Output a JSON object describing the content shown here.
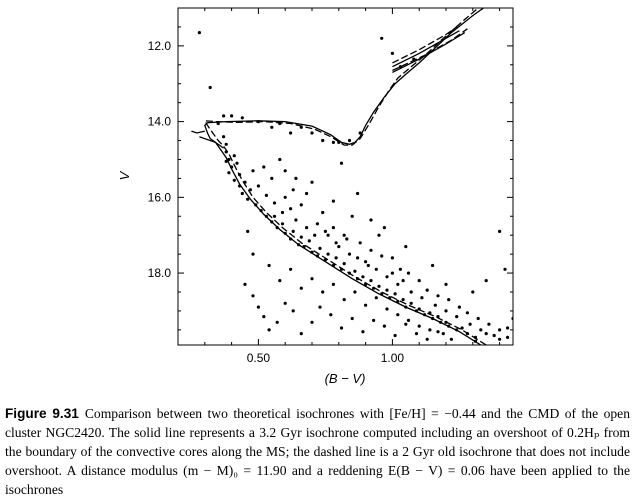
{
  "chart_data": {
    "type": "scatter",
    "title": "",
    "xlabel": "(B − V)",
    "ylabel": "V",
    "xlim": [
      0.2,
      1.45
    ],
    "ylim": [
      19.9,
      11.0
    ],
    "y_inverted": true,
    "grid": false,
    "x_ticks": [
      {
        "value": 0.5,
        "label": "0.50"
      },
      {
        "value": 1.0,
        "label": "1.00"
      }
    ],
    "y_ticks": [
      {
        "value": 12.0,
        "label": "12.0"
      },
      {
        "value": 14.0,
        "label": "14.0"
      },
      {
        "value": 16.0,
        "label": "16.0"
      },
      {
        "value": 18.0,
        "label": "18.0"
      }
    ],
    "series": [
      {
        "kind": "line",
        "style": "solid",
        "points": [
          [
            1.33,
            19.9
          ],
          [
            1.25,
            19.55
          ],
          [
            1.15,
            19.2
          ],
          [
            1.05,
            18.9
          ],
          [
            0.95,
            18.55
          ],
          [
            0.85,
            18.15
          ],
          [
            0.75,
            17.7
          ],
          [
            0.65,
            17.25
          ],
          [
            0.58,
            16.85
          ],
          [
            0.52,
            16.45
          ],
          [
            0.47,
            16.05
          ],
          [
            0.43,
            15.65
          ],
          [
            0.4,
            15.25
          ],
          [
            0.38,
            14.95
          ],
          [
            0.36,
            14.75
          ],
          [
            0.34,
            14.55
          ],
          [
            0.32,
            14.45
          ],
          [
            0.31,
            14.3
          ],
          [
            0.3,
            14.1
          ],
          [
            0.31,
            14.03
          ],
          [
            0.38,
            14.0
          ],
          [
            0.5,
            13.98
          ],
          [
            0.6,
            14.0
          ],
          [
            0.7,
            14.12
          ],
          [
            0.77,
            14.35
          ],
          [
            0.81,
            14.55
          ],
          [
            0.84,
            14.6
          ],
          [
            0.86,
            14.55
          ],
          [
            0.88,
            14.4
          ],
          [
            0.9,
            14.1
          ],
          [
            0.93,
            13.75
          ],
          [
            0.97,
            13.35
          ],
          [
            1.01,
            13.0
          ],
          [
            1.05,
            12.75
          ],
          [
            1.1,
            12.45
          ],
          [
            1.16,
            12.05
          ],
          [
            1.22,
            11.65
          ],
          [
            1.3,
            11.2
          ],
          [
            1.34,
            11.0
          ]
        ]
      },
      {
        "kind": "line",
        "style": "dashed",
        "points": [
          [
            1.35,
            19.9
          ],
          [
            1.26,
            19.5
          ],
          [
            1.16,
            19.15
          ],
          [
            1.06,
            18.85
          ],
          [
            0.96,
            18.5
          ],
          [
            0.86,
            18.1
          ],
          [
            0.76,
            17.65
          ],
          [
            0.66,
            17.2
          ],
          [
            0.59,
            16.8
          ],
          [
            0.53,
            16.4
          ],
          [
            0.48,
            16.0
          ],
          [
            0.44,
            15.55
          ],
          [
            0.41,
            15.15
          ],
          [
            0.39,
            14.85
          ],
          [
            0.37,
            14.65
          ],
          [
            0.35,
            14.5
          ],
          [
            0.33,
            14.3
          ],
          [
            0.31,
            14.1
          ],
          [
            0.3,
            13.98
          ],
          [
            0.34,
            14.0
          ],
          [
            0.42,
            14.02
          ],
          [
            0.52,
            14.0
          ],
          [
            0.62,
            14.05
          ],
          [
            0.71,
            14.2
          ],
          [
            0.77,
            14.4
          ],
          [
            0.82,
            14.62
          ],
          [
            0.85,
            14.62
          ],
          [
            0.88,
            14.45
          ],
          [
            0.91,
            14.1
          ],
          [
            0.95,
            13.6
          ],
          [
            0.99,
            13.15
          ],
          [
            1.02,
            12.85
          ],
          [
            1.07,
            12.55
          ],
          [
            1.13,
            12.2
          ],
          [
            1.19,
            11.8
          ],
          [
            1.27,
            11.3
          ],
          [
            1.32,
            11.0
          ]
        ]
      },
      {
        "kind": "line",
        "style": "solid",
        "points": [
          [
            0.3,
            14.25
          ],
          [
            0.27,
            14.3
          ],
          [
            0.25,
            14.25
          ]
        ]
      },
      {
        "kind": "line",
        "style": "solid",
        "points": [
          [
            0.28,
            14.4
          ],
          [
            0.34,
            14.55
          ],
          [
            0.37,
            14.7
          ]
        ]
      },
      {
        "kind": "line",
        "style": "solid",
        "points": [
          [
            1.0,
            12.55
          ],
          [
            1.1,
            12.2
          ],
          [
            1.2,
            11.8
          ],
          [
            1.25,
            11.6
          ]
        ]
      },
      {
        "kind": "line",
        "style": "dashed",
        "points": [
          [
            1.0,
            12.45
          ],
          [
            1.1,
            12.1
          ],
          [
            1.2,
            11.7
          ],
          [
            1.24,
            11.5
          ]
        ]
      },
      {
        "kind": "line",
        "style": "solid",
        "points": [
          [
            1.0,
            12.7
          ],
          [
            1.1,
            12.35
          ],
          [
            1.2,
            11.95
          ],
          [
            1.27,
            11.65
          ]
        ]
      },
      {
        "kind": "line",
        "style": "dashed",
        "points": [
          [
            1.0,
            12.65
          ],
          [
            1.12,
            12.25
          ],
          [
            1.22,
            11.85
          ],
          [
            1.28,
            11.55
          ]
        ]
      }
    ],
    "scatter": [
      [
        0.28,
        11.65
      ],
      [
        0.32,
        13.1
      ],
      [
        0.96,
        11.8
      ],
      [
        1.0,
        12.2
      ],
      [
        1.03,
        12.55
      ],
      [
        1.08,
        12.35
      ],
      [
        0.74,
        14.5
      ],
      [
        0.8,
        14.55
      ],
      [
        0.88,
        14.3
      ],
      [
        0.62,
        14.3
      ],
      [
        0.55,
        14.15
      ],
      [
        0.5,
        14.0
      ],
      [
        0.44,
        13.9
      ],
      [
        0.4,
        13.85
      ],
      [
        0.37,
        13.85
      ],
      [
        0.35,
        14.05
      ],
      [
        0.58,
        14.05
      ],
      [
        0.66,
        14.15
      ],
      [
        0.7,
        14.3
      ],
      [
        0.78,
        14.55
      ],
      [
        0.84,
        14.5
      ],
      [
        0.37,
        14.4
      ],
      [
        0.38,
        14.6
      ],
      [
        0.38,
        14.8
      ],
      [
        0.39,
        15.0
      ],
      [
        0.4,
        15.2
      ],
      [
        0.39,
        15.35
      ],
      [
        0.41,
        15.55
      ],
      [
        0.43,
        15.7
      ],
      [
        0.44,
        15.9
      ],
      [
        0.46,
        16.05
      ],
      [
        0.47,
        15.8
      ],
      [
        0.45,
        15.6
      ],
      [
        0.41,
        14.9
      ],
      [
        0.42,
        15.1
      ],
      [
        0.38,
        15.05
      ],
      [
        0.43,
        15.4
      ],
      [
        0.49,
        16.2
      ],
      [
        0.51,
        16.35
      ],
      [
        0.53,
        16.5
      ],
      [
        0.55,
        16.65
      ],
      [
        0.57,
        16.8
      ],
      [
        0.6,
        16.95
      ],
      [
        0.62,
        17.1
      ],
      [
        0.65,
        17.25
      ],
      [
        0.67,
        17.3
      ],
      [
        0.7,
        17.45
      ],
      [
        0.72,
        17.55
      ],
      [
        0.75,
        17.65
      ],
      [
        0.78,
        17.8
      ],
      [
        0.81,
        17.9
      ],
      [
        0.84,
        18.0
      ],
      [
        0.87,
        18.15
      ],
      [
        0.9,
        18.3
      ],
      [
        0.93,
        18.4
      ],
      [
        0.96,
        18.55
      ],
      [
        0.99,
        18.65
      ],
      [
        1.02,
        18.75
      ],
      [
        1.05,
        18.9
      ],
      [
        1.09,
        19.0
      ],
      [
        1.12,
        19.1
      ],
      [
        1.15,
        19.2
      ],
      [
        1.18,
        19.3
      ],
      [
        1.21,
        19.4
      ],
      [
        1.24,
        19.5
      ],
      [
        1.28,
        19.6
      ],
      [
        1.31,
        19.7
      ],
      [
        0.56,
        16.5
      ],
      [
        0.59,
        16.7
      ],
      [
        0.63,
        16.9
      ],
      [
        0.66,
        17.05
      ],
      [
        0.69,
        17.15
      ],
      [
        0.73,
        17.35
      ],
      [
        0.76,
        17.5
      ],
      [
        0.79,
        17.6
      ],
      [
        0.82,
        17.75
      ],
      [
        0.86,
        17.95
      ],
      [
        0.89,
        18.1
      ],
      [
        0.92,
        18.2
      ],
      [
        0.95,
        18.35
      ],
      [
        0.98,
        18.45
      ],
      [
        1.01,
        18.55
      ],
      [
        1.04,
        18.7
      ],
      [
        1.07,
        18.8
      ],
      [
        1.1,
        18.95
      ],
      [
        1.14,
        19.05
      ],
      [
        1.17,
        19.15
      ],
      [
        1.2,
        19.3
      ],
      [
        0.52,
        15.2
      ],
      [
        0.55,
        15.5
      ],
      [
        0.6,
        15.3
      ],
      [
        0.63,
        15.8
      ],
      [
        0.66,
        16.2
      ],
      [
        0.7,
        15.6
      ],
      [
        0.74,
        16.4
      ],
      [
        0.78,
        16.8
      ],
      [
        0.82,
        17.0
      ],
      [
        0.85,
        16.5
      ],
      [
        0.88,
        17.2
      ],
      [
        0.92,
        17.4
      ],
      [
        0.95,
        17.0
      ],
      [
        1.0,
        17.6
      ],
      [
        1.03,
        17.9
      ],
      [
        1.06,
        18.0
      ],
      [
        1.1,
        18.2
      ],
      [
        1.13,
        18.45
      ],
      [
        1.17,
        18.6
      ],
      [
        1.21,
        18.7
      ],
      [
        1.25,
        18.9
      ],
      [
        1.28,
        19.05
      ],
      [
        1.32,
        19.2
      ],
      [
        1.36,
        19.35
      ],
      [
        1.4,
        19.5
      ],
      [
        1.43,
        19.7
      ],
      [
        0.58,
        15.0
      ],
      [
        0.64,
        15.5
      ],
      [
        0.68,
        15.9
      ],
      [
        0.62,
        16.3
      ],
      [
        0.72,
        16.7
      ],
      [
        0.76,
        17.0
      ],
      [
        0.8,
        17.3
      ],
      [
        0.84,
        17.5
      ],
      [
        0.9,
        17.7
      ],
      [
        0.94,
        17.9
      ],
      [
        0.98,
        18.1
      ],
      [
        1.02,
        18.3
      ],
      [
        1.07,
        18.5
      ],
      [
        1.11,
        18.65
      ],
      [
        1.16,
        18.85
      ],
      [
        1.2,
        19.0
      ],
      [
        1.24,
        19.15
      ],
      [
        1.29,
        19.35
      ],
      [
        1.33,
        19.5
      ],
      [
        1.38,
        19.65
      ],
      [
        0.46,
        16.9
      ],
      [
        0.48,
        17.5
      ],
      [
        0.45,
        18.3
      ],
      [
        0.48,
        18.6
      ],
      [
        0.5,
        18.9
      ],
      [
        0.52,
        19.15
      ],
      [
        0.54,
        19.5
      ],
      [
        0.57,
        19.3
      ],
      [
        0.6,
        18.8
      ],
      [
        0.63,
        19.0
      ],
      [
        0.66,
        19.6
      ],
      [
        0.7,
        19.3
      ],
      [
        0.73,
        18.9
      ],
      [
        0.77,
        19.1
      ],
      [
        0.81,
        19.45
      ],
      [
        0.85,
        19.2
      ],
      [
        0.89,
        19.55
      ],
      [
        0.93,
        19.25
      ],
      [
        0.97,
        19.4
      ],
      [
        1.01,
        19.65
      ],
      [
        1.05,
        19.35
      ],
      [
        1.09,
        19.6
      ],
      [
        1.13,
        19.75
      ],
      [
        1.17,
        19.55
      ],
      [
        1.22,
        19.75
      ],
      [
        1.26,
        19.45
      ],
      [
        1.31,
        19.8
      ],
      [
        1.35,
        19.6
      ],
      [
        1.4,
        19.75
      ],
      [
        0.54,
        17.8
      ],
      [
        0.58,
        18.2
      ],
      [
        0.62,
        17.9
      ],
      [
        0.66,
        18.4
      ],
      [
        0.7,
        18.15
      ],
      [
        0.74,
        18.5
      ],
      [
        0.78,
        18.3
      ],
      [
        0.82,
        18.7
      ],
      [
        0.86,
        18.5
      ],
      [
        0.9,
        18.85
      ],
      [
        0.94,
        18.65
      ],
      [
        0.98,
        18.95
      ],
      [
        1.02,
        19.1
      ],
      [
        1.06,
        19.25
      ],
      [
        1.1,
        19.4
      ],
      [
        1.14,
        19.5
      ],
      [
        1.19,
        19.6
      ],
      [
        0.6,
        16.0
      ],
      [
        0.64,
        16.6
      ],
      [
        0.68,
        16.8
      ],
      [
        0.71,
        17.0
      ],
      [
        0.75,
        16.9
      ],
      [
        0.79,
        17.2
      ],
      [
        0.83,
        17.1
      ],
      [
        0.87,
        17.6
      ],
      [
        0.91,
        17.8
      ],
      [
        0.96,
        17.55
      ],
      [
        1.0,
        18.0
      ],
      [
        1.04,
        18.2
      ],
      [
        0.48,
        15.3
      ],
      [
        0.5,
        15.7
      ],
      [
        0.53,
        15.95
      ],
      [
        0.56,
        16.15
      ],
      [
        0.59,
        16.4
      ],
      [
        0.81,
        15.1
      ],
      [
        0.87,
        15.9
      ],
      [
        0.78,
        16.1
      ],
      [
        0.92,
        16.6
      ],
      [
        0.97,
        16.8
      ],
      [
        1.05,
        17.3
      ],
      [
        1.15,
        17.8
      ],
      [
        1.2,
        18.3
      ],
      [
        1.3,
        18.5
      ],
      [
        1.35,
        18.2
      ],
      [
        1.42,
        17.9
      ],
      [
        1.4,
        16.9
      ],
      [
        1.45,
        19.2
      ],
      [
        1.43,
        19.45
      ]
    ]
  },
  "caption": {
    "label": "Figure 9.31",
    "text": "Comparison between two theoretical isochrones with [Fe/H] = −0.44 and the CMD of the open cluster NGC2420. The solid line represents a 3.2 Gyr isochrone computed including an overshoot of 0.2Hₚ from the boundary of the convective cores along the MS; the dashed line is a 2 Gyr old isochrone that does not include overshoot. A distance modulus (m − M)₀ = 11.90 and a reddening E(B − V) = 0.06 have been applied to the isochrones"
  }
}
